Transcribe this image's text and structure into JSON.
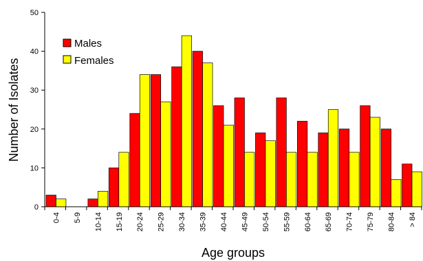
{
  "chart_data": {
    "type": "bar",
    "title": "",
    "xlabel": "Age groups",
    "ylabel": "Number of Isolates",
    "ylim": [
      0,
      50
    ],
    "yticks": [
      0,
      10,
      20,
      30,
      40,
      50
    ],
    "grid": false,
    "legend_position": "top-left",
    "categories": [
      "0-4",
      "5-9",
      "10-14",
      "15-19",
      "20-24",
      "25-29",
      "30-34",
      "35-39",
      "40-44",
      "45-49",
      "50-54",
      "55-59",
      "60-64",
      "65-69",
      "70-74",
      "75-79",
      "80-84",
      "> 84"
    ],
    "series": [
      {
        "name": "Males",
        "color": "#ff0000",
        "values": [
          3,
          0,
          2,
          10,
          24,
          34,
          36,
          40,
          26,
          28,
          19,
          28,
          22,
          19,
          20,
          26,
          20,
          11
        ]
      },
      {
        "name": "Females",
        "color": "#ffff00",
        "values": [
          2,
          0,
          4,
          14,
          34,
          27,
          44,
          37,
          21,
          14,
          17,
          14,
          14,
          25,
          14,
          23,
          7,
          9
        ]
      }
    ]
  }
}
